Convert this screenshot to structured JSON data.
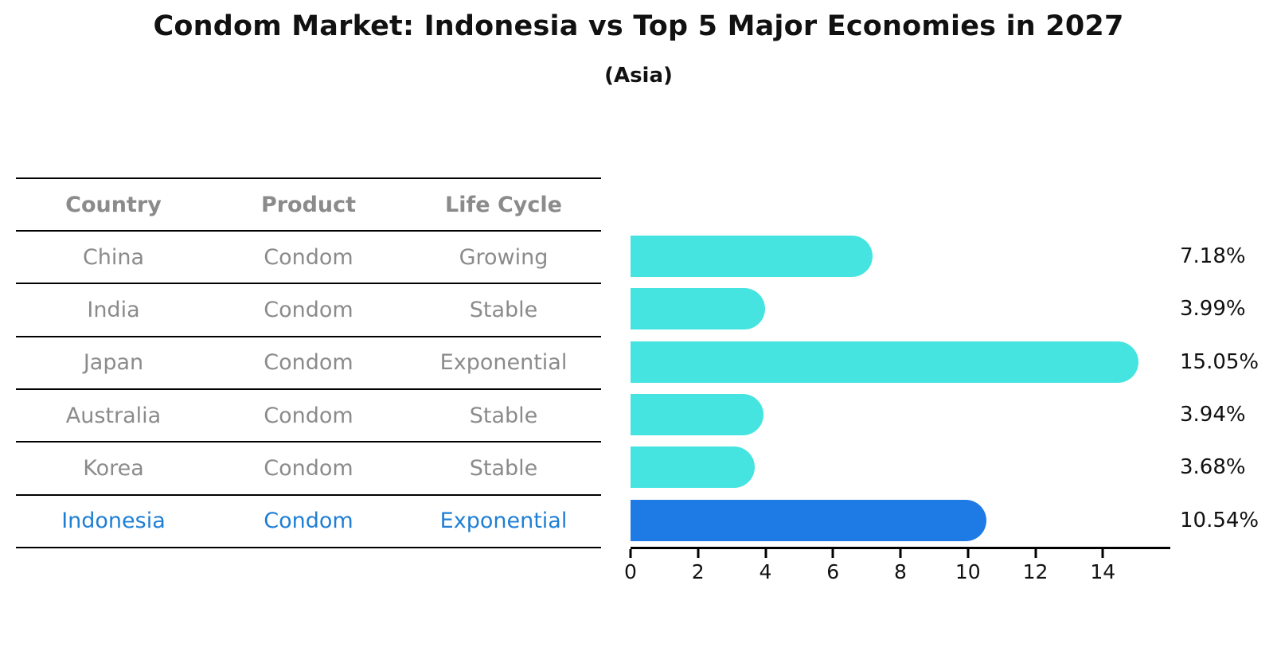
{
  "title": "Condom Market: Indonesia vs Top 5 Major Economies in 2027",
  "subtitle": "(Asia)",
  "table": {
    "headers": [
      "Country",
      "Product",
      "Life Cycle"
    ],
    "rows": [
      {
        "country": "China",
        "product": "Condom",
        "life_cycle": "Growing",
        "highlight": false
      },
      {
        "country": "India",
        "product": "Condom",
        "life_cycle": "Stable",
        "highlight": false
      },
      {
        "country": "Japan",
        "product": "Condom",
        "life_cycle": "Exponential",
        "highlight": false
      },
      {
        "country": "Australia",
        "product": "Condom",
        "life_cycle": "Stable",
        "highlight": false
      },
      {
        "country": "Korea",
        "product": "Condom",
        "life_cycle": "Stable",
        "highlight": false
      },
      {
        "country": "Indonesia",
        "product": "Condom",
        "life_cycle": "Exponential",
        "highlight": true
      }
    ]
  },
  "chart_data": {
    "type": "bar",
    "orientation": "horizontal",
    "title": "Condom Market: Indonesia vs Top 5 Major Economies in 2027",
    "subtitle": "(Asia)",
    "categories": [
      "China",
      "India",
      "Japan",
      "Australia",
      "Korea",
      "Indonesia"
    ],
    "values": [
      7.18,
      3.99,
      15.05,
      3.94,
      3.68,
      10.54
    ],
    "value_labels": [
      "7.18%",
      "3.99%",
      "15.05%",
      "3.94%",
      "3.68%",
      "10.54%"
    ],
    "unit": "%",
    "x_ticks": [
      0,
      2,
      4,
      6,
      8,
      10,
      12,
      14
    ],
    "xlim": [
      0,
      16
    ],
    "grid": false,
    "legend": false,
    "highlight_index": 5,
    "colors": {
      "bar": "#46e4e0",
      "highlight_bar": "#1e7be6",
      "highlight_text": "#1f7fd4",
      "row_text": "#8b8b8b",
      "header_text": "#111111",
      "axis": "#000000"
    }
  }
}
